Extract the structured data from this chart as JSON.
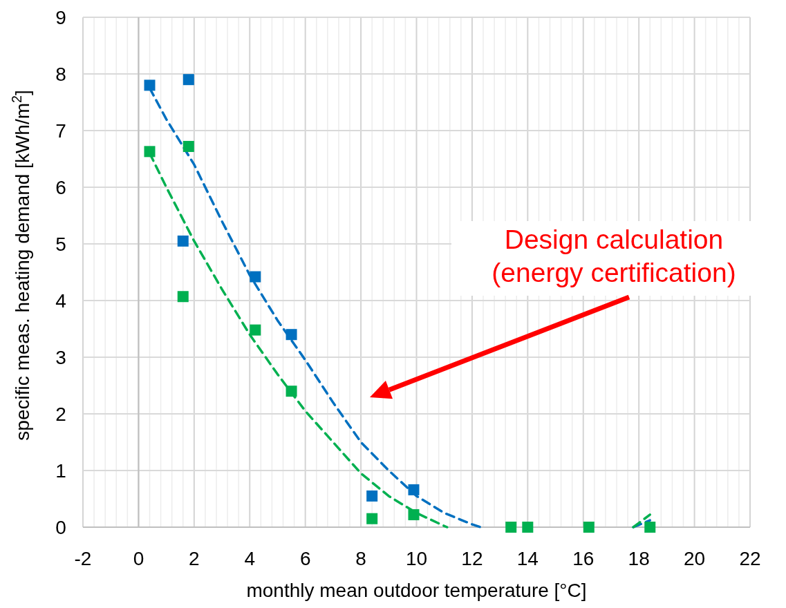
{
  "chart_data": {
    "type": "scatter",
    "xlabel": "monthly mean outdoor temperature [°C]",
    "ylabel": "specific meas. heating demand [kWh/m$^{2}$]",
    "xlim": [
      -2,
      22
    ],
    "ylim": [
      0,
      9
    ],
    "xticks": [
      -2,
      {
        "value": -1.6,
        "label": null
      },
      {
        "value": -1.2,
        "label": null
      },
      {
        "value": -0.8,
        "label": null
      },
      {
        "value": -0.4,
        "label": null
      },
      0,
      {
        "value": 0.4,
        "label": null
      },
      {
        "value": 0.8,
        "label": null
      },
      {
        "value": 1.2,
        "label": null
      },
      {
        "value": 1.6,
        "label": null
      },
      2,
      {
        "value": 2.4,
        "label": null
      },
      {
        "value": 2.8,
        "label": null
      },
      {
        "value": 3.2,
        "label": null
      },
      {
        "value": 3.6,
        "label": null
      },
      4,
      {
        "value": 4.4,
        "label": null
      },
      {
        "value": 4.8,
        "label": null
      },
      {
        "value": 5.2,
        "label": null
      },
      {
        "value": 5.6,
        "label": null
      },
      6,
      {
        "value": 6.4,
        "label": null
      },
      {
        "value": 6.8,
        "label": null
      },
      {
        "value": 7.2,
        "label": null
      },
      {
        "value": 7.6,
        "label": null
      },
      8,
      {
        "value": 8.4,
        "label": null
      },
      {
        "value": 8.8,
        "label": null
      },
      {
        "value": 9.2,
        "label": null
      },
      {
        "value": 9.6,
        "label": null
      },
      10,
      {
        "value": 10.4,
        "label": null
      },
      {
        "value": 10.8,
        "label": null
      },
      {
        "value": 11.2,
        "label": null
      },
      {
        "value": 11.6,
        "label": null
      },
      12,
      {
        "value": 12.4,
        "label": null
      },
      {
        "value": 12.8,
        "label": null
      },
      {
        "value": 13.2,
        "label": null
      },
      {
        "value": 13.6,
        "label": null
      },
      14,
      {
        "value": 14.4,
        "label": null
      },
      {
        "value": 14.8,
        "label": null
      },
      {
        "value": 15.2,
        "label": null
      },
      {
        "value": 15.6,
        "label": null
      },
      16,
      {
        "value": 16.4,
        "label": null
      },
      {
        "value": 16.8,
        "label": null
      },
      {
        "value": 17.2,
        "label": null
      },
      {
        "value": 17.6,
        "label": null
      },
      18,
      {
        "value": 18.4,
        "label": null
      },
      {
        "value": 18.8,
        "label": null
      },
      {
        "value": 19.2,
        "label": null
      },
      {
        "value": 19.6,
        "label": null
      },
      20,
      {
        "value": 20.4,
        "label": null
      },
      {
        "value": 20.8,
        "label": null
      },
      {
        "value": 21.2,
        "label": null
      },
      {
        "value": 21.6,
        "label": null
      },
      22
    ],
    "yticks": [
      0,
      1,
      2,
      3,
      4,
      5,
      6,
      7,
      8,
      9
    ],
    "grid": true,
    "marker": "square",
    "series": [
      {
        "type": "line",
        "color": "#0070c0",
        "line_style": "dashed",
        "marker": "none",
        "x": [
          0.4,
          1,
          2,
          3,
          4,
          5,
          6,
          7,
          8,
          9,
          10,
          11,
          12,
          12.3,
          15,
          17.8,
          18.4
        ],
        "values": [
          7.75,
          7.2,
          6.4,
          5.4,
          4.45,
          3.65,
          2.95,
          2.2,
          1.5,
          1.0,
          0.55,
          0.25,
          0.05,
          0,
          null,
          0,
          0.12
        ]
      },
      {
        "type": "line",
        "color": "#00b050",
        "line_style": "dashed",
        "marker": "none",
        "x": [
          0.4,
          1,
          2,
          3,
          4,
          5,
          6,
          7,
          8,
          9,
          10,
          11,
          11.1,
          15,
          17.8,
          18.4
        ],
        "values": [
          6.6,
          6.0,
          5.05,
          4.2,
          3.4,
          2.7,
          2.05,
          1.5,
          0.95,
          0.55,
          0.25,
          0.02,
          0,
          null,
          0,
          0.22
        ]
      },
      {
        "color": "#0070c0",
        "x": [
          0.4,
          1.8,
          1.6,
          4.2,
          5.5,
          8.4,
          9.9
        ],
        "values": [
          7.8,
          7.9,
          5.05,
          4.42,
          3.4,
          0.55,
          0.66
        ]
      },
      {
        "color": "#00b050",
        "x": [
          0.4,
          1.8,
          1.6,
          4.2,
          5.5,
          8.4,
          9.9,
          13.4,
          14,
          16.2,
          18.4
        ],
        "values": [
          6.63,
          6.72,
          4.07,
          3.48,
          2.4,
          0.15,
          0.22,
          0,
          0,
          0,
          0
        ]
      }
    ],
    "annotations": [
      "Design calculation\n(energy certification)"
    ]
  }
}
